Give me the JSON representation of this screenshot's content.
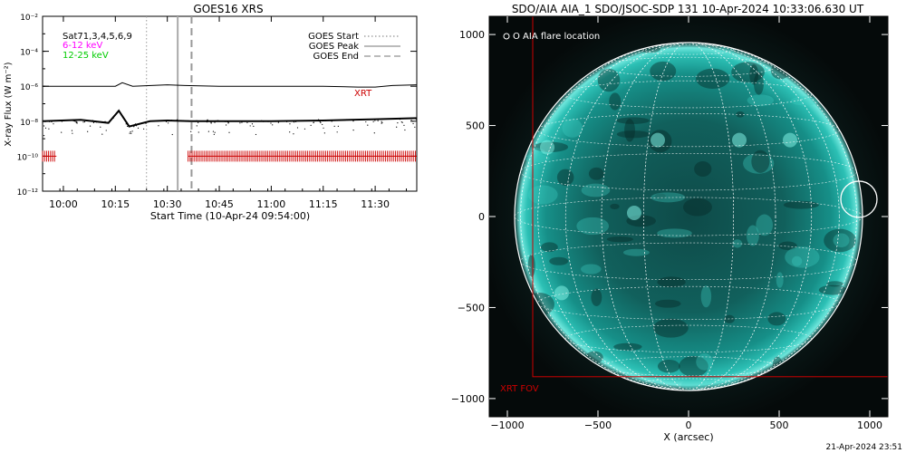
{
  "left_panel": {
    "title": "GOES16 XRS",
    "ylabel": "X-ray Flux (W m⁻²)",
    "xlabel": "Start Time (10-Apr-24 09:54:00)",
    "annotations": {
      "sats": "Sat71,3,4,5,6,9",
      "band_low": "6-12 keV",
      "band_high": "12-25 keV",
      "xrt": "XRT"
    },
    "legend": [
      "GOES Start",
      "GOES Peak",
      "GOES End"
    ]
  },
  "right_panel": {
    "title": "SDO/AIA AIA_1 SDO/JSOC-SDP 131 10-Apr-2024 10:33:06.630 UT",
    "legend": "O AIA flare location",
    "xlabel": "X (arcsec)",
    "fov_label": "XRT FOV",
    "timestamp": "21-Apr-2024 23:51"
  },
  "colors": {
    "band_low": "#ff00ff",
    "band_high": "#00cc00",
    "xrt": "#cc0000",
    "sun": "#16a39b"
  },
  "chart_data": [
    {
      "type": "line",
      "title": "GOES16 XRS",
      "xlabel": "Start Time (10-Apr-24 09:54:00)",
      "ylabel": "X-ray Flux (W m⁻²)",
      "xlim": [
        "09:54",
        "11:42"
      ],
      "ylim": [
        1e-12,
        0.01
      ],
      "yscale": "log",
      "x_ticks": [
        "10:00",
        "10:15",
        "10:30",
        "10:45",
        "11:00",
        "11:15",
        "11:30"
      ],
      "y_ticks": [
        "10⁻¹²",
        "10⁻¹⁰",
        "10⁻⁸",
        "10⁻⁶",
        "10⁻⁴",
        "10⁻²"
      ],
      "series": [
        {
          "name": "",
          "x": [
            "09:54",
            "10:05",
            "10:15",
            "10:17",
            "10:20",
            "10:30",
            "10:35",
            "10:45",
            "11:00",
            "11:15",
            "11:25",
            "11:30",
            "11:35",
            "11:42"
          ],
          "y": [
            1e-06,
            1e-06,
            1e-06,
            1.6e-06,
            1e-06,
            1.2e-06,
            1.1e-06,
            1e-06,
            1e-06,
            1e-06,
            9e-07,
            9e-07,
            1.1e-06,
            1.2e-06
          ]
        },
        {
          "name": "",
          "x": [
            "09:54",
            "10:05",
            "10:13",
            "10:16",
            "10:19",
            "10:25",
            "10:30",
            "10:37",
            "10:45",
            "11:00",
            "11:15",
            "11:30",
            "11:42"
          ],
          "y": [
            1e-08,
            1.2e-08,
            8e-09,
            4e-08,
            5e-09,
            1e-08,
            1.1e-08,
            1e-08,
            1e-08,
            1e-08,
            1.1e-08,
            1.3e-08,
            1.5e-08
          ]
        }
      ],
      "markers": [
        {
          "name": "GOES Start",
          "x": "10:24",
          "style": "dotted"
        },
        {
          "name": "GOES Peak",
          "x": "10:33",
          "style": "solid"
        },
        {
          "name": "GOES End",
          "x": "10:37",
          "style": "dashed"
        }
      ],
      "xrt_coverage": [
        {
          "start": "09:54",
          "end": "09:58"
        },
        {
          "start": "10:36",
          "end": "11:42"
        }
      ],
      "xrt_level": 1e-10,
      "legend_position": "top-right"
    },
    {
      "type": "image",
      "title": "SDO/AIA AIA_1 SDO/JSOC-SDP 131 10-Apr-2024 10:33:06.630 UT",
      "xlabel": "X (arcsec)",
      "xlim": [
        -1100,
        1100
      ],
      "ylim": [
        -1100,
        1100
      ],
      "x_ticks": [
        -1000,
        -500,
        0,
        500,
        1000
      ],
      "y_ticks": [
        -1000,
        -500,
        0,
        500,
        1000
      ],
      "solar_radius_arcsec": 960,
      "flare_location": {
        "x": 940,
        "y": 95,
        "radius": 100
      },
      "xrt_fov": {
        "x0": -860,
        "y0": -880,
        "x1": 1100,
        "y1": 1100
      }
    }
  ]
}
